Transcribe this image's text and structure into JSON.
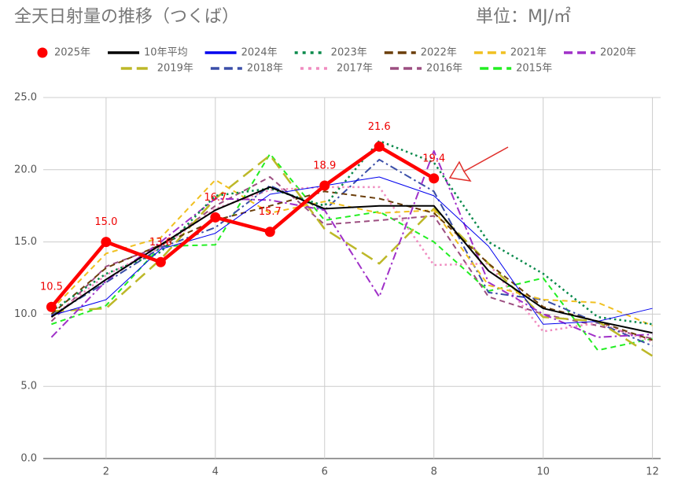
{
  "chart_data": {
    "type": "line",
    "title": "全天日射量の推移（つくば）",
    "subtitle": "単位：MJ/㎡",
    "x": [
      1,
      2,
      3,
      4,
      5,
      6,
      7,
      8,
      9,
      10,
      11,
      12
    ],
    "xlim": [
      0.85,
      12.15
    ],
    "xticks": [
      2,
      4,
      6,
      8,
      10,
      12
    ],
    "ylim": [
      0,
      25
    ],
    "yticks": [
      {
        "value": 0,
        "label": "0.0"
      },
      {
        "value": 5,
        "label": "5.0"
      },
      {
        "value": 10,
        "label": "10.0"
      },
      {
        "value": 15,
        "label": "15.0"
      },
      {
        "value": 20,
        "label": "20.0"
      },
      {
        "value": 25,
        "label": "25.0"
      }
    ],
    "grid": true,
    "series": [
      {
        "name": "2025年",
        "color": "#ff0000",
        "style": "solid",
        "markers": true,
        "values": [
          10.5,
          15.0,
          13.6,
          16.7,
          15.7,
          18.9,
          21.6,
          19.4,
          null,
          null,
          null,
          null
        ],
        "value_labels": [
          "10.5",
          "15.0",
          "13.6",
          "16.7",
          "15.7",
          "18.9",
          "21.6",
          "19.4",
          null,
          null,
          null,
          null
        ]
      },
      {
        "name": "10年平均",
        "color": "#000000",
        "style": "solid",
        "values": [
          9.8,
          12.4,
          14.8,
          17.2,
          18.8,
          17.3,
          17.5,
          17.5,
          13.0,
          10.4,
          9.5,
          8.7
        ]
      },
      {
        "name": "2024年",
        "color": "#0000ee",
        "style": "thin",
        "values": [
          9.9,
          11.0,
          14.5,
          15.6,
          18.3,
          18.9,
          19.5,
          18.2,
          14.7,
          9.3,
          9.5,
          10.4
        ]
      },
      {
        "name": "2023年",
        "color": "#0b8a4c",
        "style": "dotted",
        "values": [
          10.2,
          12.8,
          14.3,
          18.2,
          18.7,
          17.5,
          22.0,
          20.5,
          15.0,
          12.8,
          9.8,
          9.3
        ]
      },
      {
        "name": "2022年",
        "color": "#6b3e0a",
        "style": "dashed",
        "values": [
          10.0,
          13.2,
          14.8,
          16.5,
          17.5,
          18.5,
          18.0,
          17.0,
          13.5,
          10.5,
          9.5,
          8.2
        ]
      },
      {
        "name": "2021年",
        "color": "#f0c020",
        "style": "dashed",
        "values": [
          10.3,
          14.2,
          15.3,
          19.3,
          17.0,
          17.8,
          17.0,
          17.2,
          12.0,
          11.0,
          10.8,
          9.2
        ]
      },
      {
        "name": "2020年",
        "color": "#a030c8",
        "style": "dashdot",
        "values": [
          8.4,
          12.3,
          15.0,
          18.0,
          17.9,
          17.2,
          11.2,
          21.3,
          12.2,
          10.0,
          8.4,
          8.6
        ]
      },
      {
        "name": "2019年",
        "color": "#bdb828",
        "style": "longdash",
        "values": [
          10.2,
          10.4,
          13.8,
          18.0,
          21.0,
          15.9,
          13.5,
          17.3,
          13.5,
          9.8,
          9.5,
          7.1
        ]
      },
      {
        "name": "2018年",
        "color": "#3a4ea8",
        "style": "dashdot",
        "values": [
          9.9,
          12.2,
          14.6,
          16.0,
          18.9,
          17.2,
          20.7,
          18.5,
          11.5,
          11.0,
          9.4,
          7.8
        ]
      },
      {
        "name": "2017年",
        "color": "#f08cc0",
        "style": "dotted",
        "values": [
          9.8,
          12.7,
          14.6,
          17.3,
          18.6,
          18.8,
          18.8,
          13.4,
          13.5,
          8.8,
          9.4,
          8.1
        ]
      },
      {
        "name": "2016年",
        "color": "#9c4e80",
        "style": "dashed",
        "values": [
          9.5,
          13.3,
          14.7,
          17.5,
          19.5,
          16.2,
          16.5,
          16.8,
          11.2,
          10.0,
          9.2,
          8.3
        ]
      },
      {
        "name": "2015年",
        "color": "#22ee22",
        "style": "dashed",
        "values": [
          9.3,
          10.6,
          14.7,
          14.8,
          21.1,
          16.5,
          17.1,
          15.0,
          11.6,
          12.5,
          7.5,
          8.3
        ]
      }
    ]
  }
}
